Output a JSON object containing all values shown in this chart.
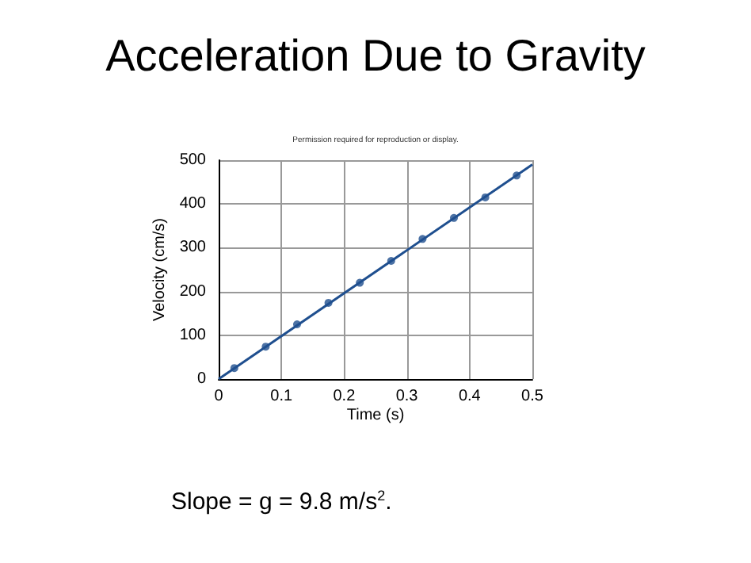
{
  "chart_data": {
    "type": "scatter",
    "title": "Acceleration Due to Gravity",
    "xlabel": "Time (s)",
    "ylabel": "Velocity (cm/s)",
    "x": [
      0.025,
      0.075,
      0.125,
      0.175,
      0.225,
      0.275,
      0.325,
      0.375,
      0.425,
      0.475
    ],
    "series": [
      {
        "marker": "circle",
        "color": "#1f4f8f",
        "values": [
          25,
          74,
          125,
          174,
          220,
          270,
          320,
          368,
          415,
          465
        ]
      },
      {
        "type": "line",
        "color": "#1f4f8f",
        "x": [
          0,
          0.5
        ],
        "values": [
          0,
          490
        ]
      }
    ],
    "xlim": [
      0,
      0.5
    ],
    "xticks": [
      0,
      0.1,
      0.2,
      0.3,
      0.4,
      0.5
    ],
    "ylim": [
      0,
      500
    ],
    "yticks": [
      0,
      100,
      200,
      300,
      400,
      500
    ],
    "grid": true,
    "line_style": "solid",
    "annotations": [
      "Permission required for reproduction or display.",
      "Slope = g = 9.8 m/s$^{2}$."
    ]
  }
}
